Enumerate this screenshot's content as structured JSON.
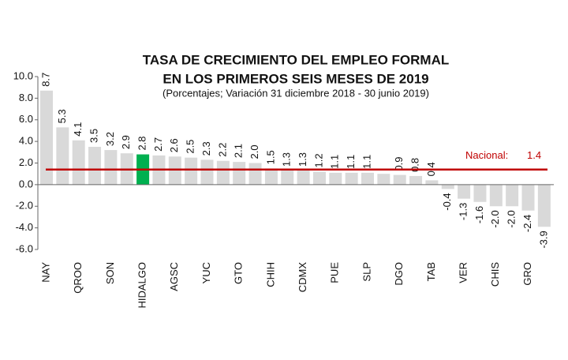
{
  "chart_data": {
    "type": "bar",
    "title": "TASA DE CRECIMIENTO DEL EMPLEO FORMAL",
    "title_line2": "EN LOS PRIMEROS SEIS MESES DE 2019",
    "subtitle": "(Porcentajes; Variación 31 diciembre 2018 - 30 junio 2019)",
    "categories": [
      "NAY",
      null,
      "QROO",
      null,
      "SON",
      null,
      "HIDALGO",
      null,
      "AGSC",
      null,
      "YUC",
      null,
      "GTO",
      null,
      "CHIH",
      null,
      "CDMX",
      null,
      "PUE",
      null,
      "SLP",
      null,
      "DGO",
      null,
      "TAB",
      null,
      "VER",
      null,
      "CHIS",
      null,
      "GRO",
      null
    ],
    "values": [
      8.7,
      5.3,
      4.1,
      3.5,
      3.2,
      2.9,
      2.8,
      2.7,
      2.6,
      2.5,
      2.3,
      2.2,
      2.1,
      2.0,
      1.5,
      1.3,
      1.3,
      1.2,
      1.1,
      1.1,
      1.1,
      1.0,
      0.9,
      0.8,
      0.4,
      -0.4,
      -1.3,
      -1.6,
      -2.0,
      -2.0,
      -2.4,
      -3.9
    ],
    "value_labels": [
      "8.7",
      "5.3",
      "4.1",
      "3.5",
      "3.2",
      "2.9",
      "2.8",
      "2.7",
      "2.6",
      "2.5",
      "2.3",
      "2.2",
      "2.1",
      "2.0",
      "1.5",
      "1.3",
      "1.3",
      "1.2",
      "1.1",
      "1.1",
      "1.1",
      null,
      "0.9",
      "0.8",
      "0.4",
      "-0.4",
      "-1.3",
      "-1.6",
      "-2.0",
      "-2.0",
      "-2.4",
      "-3.9"
    ],
    "color": "#d9d9d9",
    "highlight_category": "HIDALGO",
    "highlight_color": "#00b050",
    "ylim": [
      -6,
      10
    ],
    "yticks": [
      {
        "value": 10,
        "label": "10.0"
      },
      {
        "value": 8,
        "label": "8.0"
      },
      {
        "value": 6,
        "label": "6.0"
      },
      {
        "value": 4,
        "label": "4.0"
      },
      {
        "value": 2,
        "label": "2.0"
      },
      {
        "value": 0,
        "label": "0.0"
      },
      {
        "value": -2,
        "label": "-2.0"
      },
      {
        "value": -4,
        "label": "-4.0"
      },
      {
        "value": -6,
        "label": "-6.0"
      }
    ],
    "reference_line": {
      "name": "Nacional:",
      "value": 1.4,
      "value_label": "1.4",
      "color": "#c00000"
    },
    "grid": false
  }
}
